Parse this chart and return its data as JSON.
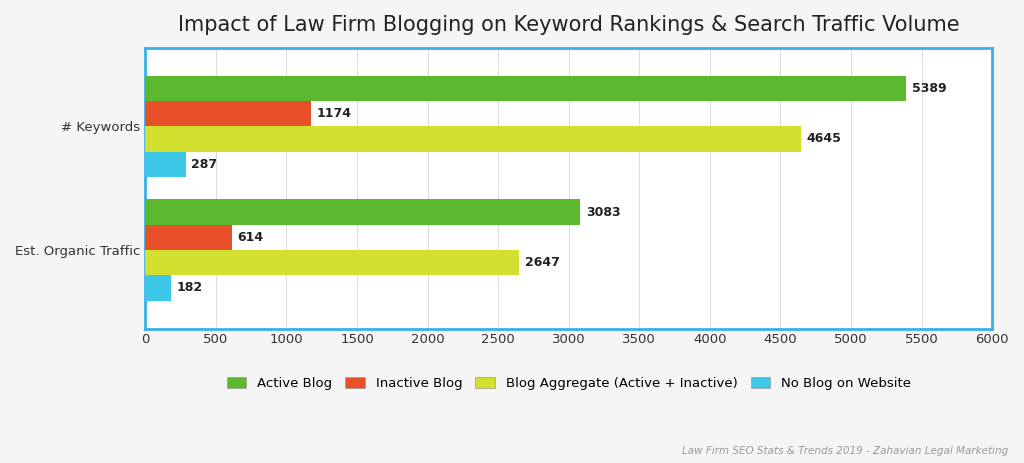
{
  "title": "Impact of Law Firm Blogging on Keyword Rankings & Search Traffic Volume",
  "subtitle": "Law Firm SEO Stats & Trends 2019 - Zahavian Legal Marketing",
  "categories": [
    "# Keywords",
    "Est. Organic Traffic"
  ],
  "series": [
    {
      "label": "Active Blog",
      "color": "#5cb82e",
      "values": [
        5389,
        3083
      ]
    },
    {
      "label": "Inactive Blog",
      "color": "#e8502a",
      "values": [
        1174,
        614
      ]
    },
    {
      "label": "Blog Aggregate (Active + Inactive)",
      "color": "#d4e030",
      "values": [
        4645,
        2647
      ]
    },
    {
      "label": "No Blog on Website",
      "color": "#3ec8e8",
      "values": [
        287,
        182
      ]
    }
  ],
  "xlim": [
    0,
    6000
  ],
  "xticks": [
    0,
    500,
    1000,
    1500,
    2000,
    2500,
    3000,
    3500,
    4000,
    4500,
    5000,
    5500,
    6000
  ],
  "bar_height": 0.09,
  "cat_centers": [
    0.72,
    0.28
  ],
  "ylim": [
    0.0,
    1.0
  ],
  "background_color": "#f5f5f5",
  "plot_bg_color": "#ffffff",
  "border_color": "#3ab0e8",
  "grid_color": "#dddddd",
  "title_fontsize": 15,
  "label_fontsize": 9.5,
  "tick_fontsize": 9.5,
  "legend_fontsize": 9.5,
  "annotation_fontsize": 9
}
